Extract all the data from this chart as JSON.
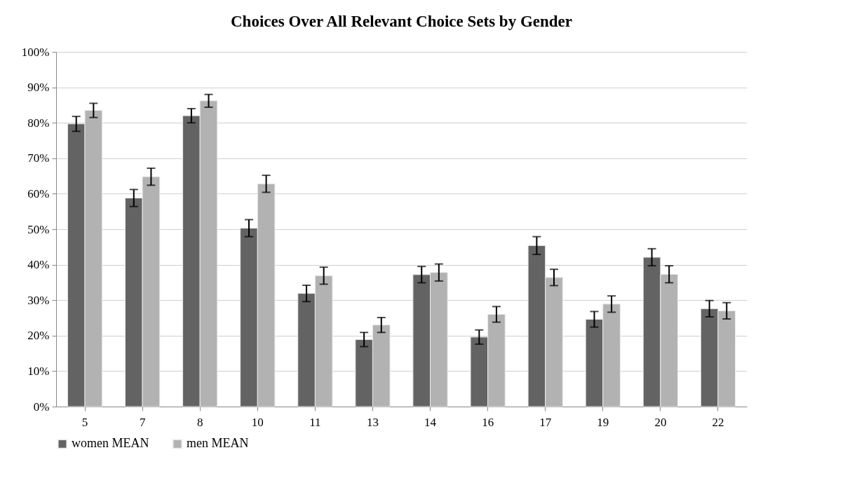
{
  "chart_data": {
    "type": "bar",
    "title": "Choices Over All Relevant Choice Sets by Gender",
    "categories": [
      "5",
      "7",
      "8",
      "10",
      "11",
      "13",
      "14",
      "16",
      "17",
      "19",
      "20",
      "22"
    ],
    "series": [
      {
        "name": "women MEAN",
        "color": "#636363",
        "values": [
          79.7,
          58.8,
          82.0,
          50.3,
          31.9,
          18.9,
          37.2,
          19.6,
          45.4,
          24.6,
          42.1,
          27.6
        ],
        "errors": [
          2.1,
          2.4,
          2.0,
          2.4,
          2.3,
          2.0,
          2.3,
          2.0,
          2.5,
          2.2,
          2.4,
          2.3
        ]
      },
      {
        "name": "men MEAN",
        "color": "#b2b2b2",
        "values": [
          83.5,
          64.8,
          86.2,
          62.8,
          36.9,
          23.0,
          37.8,
          26.0,
          36.4,
          28.9,
          37.3,
          27.0
        ],
        "errors": [
          2.0,
          2.4,
          1.8,
          2.4,
          2.4,
          2.1,
          2.4,
          2.2,
          2.3,
          2.3,
          2.4,
          2.3
        ]
      }
    ],
    "ylim": [
      0,
      100
    ],
    "yticks": [
      {
        "value": 0,
        "label": "0%"
      },
      {
        "value": 10,
        "label": "10%"
      },
      {
        "value": 20,
        "label": "20%"
      },
      {
        "value": 30,
        "label": "30%"
      },
      {
        "value": 40,
        "label": "40%"
      },
      {
        "value": 50,
        "label": "50%"
      },
      {
        "value": 60,
        "label": "60%"
      },
      {
        "value": 70,
        "label": "70%"
      },
      {
        "value": 80,
        "label": "80%"
      },
      {
        "value": 90,
        "label": "90%"
      },
      {
        "value": 100,
        "label": "100%"
      }
    ],
    "grid": "y",
    "legend": "bottom"
  }
}
